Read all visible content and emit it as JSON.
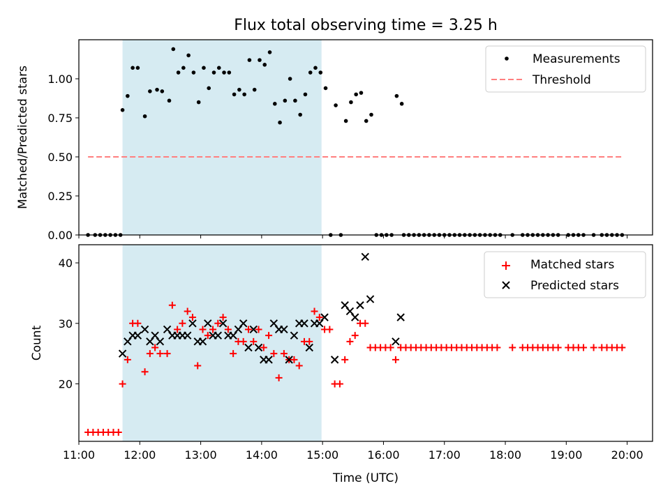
{
  "chart_data": [
    {
      "type": "scatter",
      "title": "Flux total observing time = 3.25 h",
      "ylabel": "Matched/Predicted stars",
      "xlim": [
        "11:00",
        "20:25"
      ],
      "ylim": [
        0,
        1.25
      ],
      "x_ticks": [
        "11:00",
        "12:00",
        "13:00",
        "14:00",
        "15:00",
        "16:00",
        "17:00",
        "18:00",
        "19:00",
        "20:00"
      ],
      "y_ticks": [
        "0.00",
        "0.25",
        "0.50",
        "0.75",
        "1.00"
      ],
      "highlight_span": [
        "11:43",
        "14:59"
      ],
      "highlight_color": "#add8e6",
      "legend_position": "top-right",
      "series": [
        {
          "name": "Measurements",
          "marker": "dot",
          "color": "#000000",
          "points": [
            [
              "11:09",
              0
            ],
            [
              "11:16",
              0
            ],
            [
              "11:21",
              0
            ],
            [
              "11:26",
              0
            ],
            [
              "11:31",
              0
            ],
            [
              "11:36",
              0
            ],
            [
              "11:41",
              0
            ],
            [
              "11:43",
              0.8
            ],
            [
              "11:48",
              0.89
            ],
            [
              "11:53",
              1.07
            ],
            [
              "11:58",
              1.07
            ],
            [
              "12:05",
              0.76
            ],
            [
              "12:10",
              0.92
            ],
            [
              "12:17",
              0.93
            ],
            [
              "12:22",
              0.92
            ],
            [
              "12:29",
              0.86
            ],
            [
              "12:33",
              1.19
            ],
            [
              "12:38",
              1.04
            ],
            [
              "12:43",
              1.07
            ],
            [
              "12:48",
              1.15
            ],
            [
              "12:53",
              1.04
            ],
            [
              "12:58",
              0.85
            ],
            [
              "13:03",
              1.07
            ],
            [
              "13:08",
              0.94
            ],
            [
              "13:13",
              1.04
            ],
            [
              "13:18",
              1.07
            ],
            [
              "13:23",
              1.04
            ],
            [
              "13:28",
              1.04
            ],
            [
              "13:33",
              0.9
            ],
            [
              "13:38",
              0.93
            ],
            [
              "13:43",
              0.9
            ],
            [
              "13:48",
              1.12
            ],
            [
              "13:53",
              0.93
            ],
            [
              "13:58",
              1.12
            ],
            [
              "14:03",
              1.09
            ],
            [
              "14:08",
              1.17
            ],
            [
              "14:13",
              0.84
            ],
            [
              "14:18",
              0.72
            ],
            [
              "14:23",
              0.86
            ],
            [
              "14:28",
              1.0
            ],
            [
              "14:33",
              0.86
            ],
            [
              "14:38",
              0.77
            ],
            [
              "14:43",
              0.9
            ],
            [
              "14:48",
              1.04
            ],
            [
              "14:53",
              1.07
            ],
            [
              "14:58",
              1.04
            ],
            [
              "15:03",
              0.94
            ],
            [
              "15:08",
              0
            ],
            [
              "15:13",
              0.83
            ],
            [
              "15:18",
              0
            ],
            [
              "15:23",
              0.73
            ],
            [
              "15:28",
              0.85
            ],
            [
              "15:33",
              0.9
            ],
            [
              "15:38",
              0.91
            ],
            [
              "15:43",
              0.73
            ],
            [
              "15:48",
              0.77
            ],
            [
              "15:53",
              0
            ],
            [
              "15:58",
              0
            ],
            [
              "16:03",
              0
            ],
            [
              "16:08",
              0
            ],
            [
              "16:13",
              0.89
            ],
            [
              "16:18",
              0.84
            ],
            [
              "16:20",
              0
            ],
            [
              "16:25",
              0
            ],
            [
              "16:30",
              0
            ],
            [
              "16:35",
              0
            ],
            [
              "16:40",
              0
            ],
            [
              "16:45",
              0
            ],
            [
              "16:50",
              0
            ],
            [
              "16:55",
              0
            ],
            [
              "17:00",
              0
            ],
            [
              "17:05",
              0
            ],
            [
              "17:10",
              0
            ],
            [
              "17:15",
              0
            ],
            [
              "17:20",
              0
            ],
            [
              "17:25",
              0
            ],
            [
              "17:30",
              0
            ],
            [
              "17:35",
              0
            ],
            [
              "17:40",
              0
            ],
            [
              "17:45",
              0
            ],
            [
              "17:50",
              0
            ],
            [
              "17:55",
              0
            ],
            [
              "18:07",
              0
            ],
            [
              "18:17",
              0
            ],
            [
              "18:22",
              0
            ],
            [
              "18:27",
              0
            ],
            [
              "18:32",
              0
            ],
            [
              "18:37",
              0
            ],
            [
              "18:42",
              0
            ],
            [
              "18:47",
              0
            ],
            [
              "18:52",
              0
            ],
            [
              "19:02",
              0
            ],
            [
              "19:07",
              0
            ],
            [
              "19:12",
              0
            ],
            [
              "19:17",
              0
            ],
            [
              "19:27",
              0
            ],
            [
              "19:35",
              0
            ],
            [
              "19:40",
              0
            ],
            [
              "19:45",
              0
            ],
            [
              "19:50",
              0
            ],
            [
              "19:55",
              0
            ]
          ]
        },
        {
          "name": "Threshold",
          "marker": "dashed-line",
          "color": "#ff7f7f",
          "points": [
            [
              "11:09",
              0.5
            ],
            [
              "19:55",
              0.5
            ]
          ]
        }
      ]
    },
    {
      "type": "scatter",
      "xlabel": "Time (UTC)",
      "ylabel": "Count",
      "xlim": [
        "11:00",
        "20:25"
      ],
      "ylim": [
        10.5,
        43
      ],
      "x_ticks": [
        "11:00",
        "12:00",
        "13:00",
        "14:00",
        "15:00",
        "16:00",
        "17:00",
        "18:00",
        "19:00",
        "20:00"
      ],
      "y_ticks": [
        "20",
        "30",
        "40"
      ],
      "highlight_span": [
        "11:43",
        "14:59"
      ],
      "highlight_color": "#add8e6",
      "legend_position": "top-right",
      "series": [
        {
          "name": "Matched stars",
          "marker": "plus",
          "color": "#ff0000",
          "points": [
            [
              "11:09",
              12
            ],
            [
              "11:14",
              12
            ],
            [
              "11:19",
              12
            ],
            [
              "11:24",
              12
            ],
            [
              "11:29",
              12
            ],
            [
              "11:34",
              12
            ],
            [
              "11:39",
              12
            ],
            [
              "11:43",
              20
            ],
            [
              "11:48",
              24
            ],
            [
              "11:53",
              30
            ],
            [
              "11:58",
              30
            ],
            [
              "12:05",
              22
            ],
            [
              "12:10",
              25
            ],
            [
              "12:15",
              26
            ],
            [
              "12:20",
              25
            ],
            [
              "12:27",
              25
            ],
            [
              "12:32",
              33
            ],
            [
              "12:37",
              29
            ],
            [
              "12:42",
              30
            ],
            [
              "12:47",
              32
            ],
            [
              "12:52",
              31
            ],
            [
              "12:57",
              23
            ],
            [
              "13:02",
              29
            ],
            [
              "13:07",
              28
            ],
            [
              "13:12",
              29
            ],
            [
              "13:17",
              30
            ],
            [
              "13:22",
              31
            ],
            [
              "13:27",
              29
            ],
            [
              "13:32",
              25
            ],
            [
              "13:37",
              27
            ],
            [
              "13:42",
              27
            ],
            [
              "13:47",
              29
            ],
            [
              "13:52",
              27
            ],
            [
              "13:57",
              29
            ],
            [
              "14:02",
              26
            ],
            [
              "14:07",
              28
            ],
            [
              "14:12",
              25
            ],
            [
              "14:17",
              21
            ],
            [
              "14:22",
              25
            ],
            [
              "14:27",
              24
            ],
            [
              "14:32",
              24
            ],
            [
              "14:37",
              23
            ],
            [
              "14:42",
              27
            ],
            [
              "14:47",
              27
            ],
            [
              "14:52",
              32
            ],
            [
              "14:57",
              31
            ],
            [
              "15:02",
              29
            ],
            [
              "15:07",
              29
            ],
            [
              "15:12",
              20
            ],
            [
              "15:17",
              20
            ],
            [
              "15:22",
              24
            ],
            [
              "15:27",
              27
            ],
            [
              "15:32",
              28
            ],
            [
              "15:37",
              30
            ],
            [
              "15:42",
              30
            ],
            [
              "15:47",
              26
            ],
            [
              "15:52",
              26
            ],
            [
              "15:57",
              26
            ],
            [
              "16:02",
              26
            ],
            [
              "16:07",
              26
            ],
            [
              "16:12",
              24
            ],
            [
              "16:17",
              26
            ],
            [
              "16:22",
              26
            ],
            [
              "16:27",
              26
            ],
            [
              "16:32",
              26
            ],
            [
              "16:37",
              26
            ],
            [
              "16:42",
              26
            ],
            [
              "16:47",
              26
            ],
            [
              "16:52",
              26
            ],
            [
              "16:57",
              26
            ],
            [
              "17:02",
              26
            ],
            [
              "17:07",
              26
            ],
            [
              "17:12",
              26
            ],
            [
              "17:17",
              26
            ],
            [
              "17:22",
              26
            ],
            [
              "17:27",
              26
            ],
            [
              "17:32",
              26
            ],
            [
              "17:37",
              26
            ],
            [
              "17:42",
              26
            ],
            [
              "17:47",
              26
            ],
            [
              "17:52",
              26
            ],
            [
              "18:07",
              26
            ],
            [
              "18:17",
              26
            ],
            [
              "18:22",
              26
            ],
            [
              "18:27",
              26
            ],
            [
              "18:32",
              26
            ],
            [
              "18:37",
              26
            ],
            [
              "18:42",
              26
            ],
            [
              "18:47",
              26
            ],
            [
              "18:52",
              26
            ],
            [
              "19:02",
              26
            ],
            [
              "19:07",
              26
            ],
            [
              "19:12",
              26
            ],
            [
              "19:17",
              26
            ],
            [
              "19:27",
              26
            ],
            [
              "19:35",
              26
            ],
            [
              "19:40",
              26
            ],
            [
              "19:45",
              26
            ],
            [
              "19:50",
              26
            ],
            [
              "19:55",
              26
            ]
          ]
        },
        {
          "name": "Predicted stars",
          "marker": "x",
          "color": "#000000",
          "points": [
            [
              "11:43",
              25
            ],
            [
              "11:48",
              27
            ],
            [
              "11:53",
              28
            ],
            [
              "11:58",
              28
            ],
            [
              "12:05",
              29
            ],
            [
              "12:10",
              27
            ],
            [
              "12:15",
              28
            ],
            [
              "12:20",
              27
            ],
            [
              "12:27",
              29
            ],
            [
              "12:32",
              28
            ],
            [
              "12:37",
              28
            ],
            [
              "12:42",
              28
            ],
            [
              "12:47",
              28
            ],
            [
              "12:52",
              30
            ],
            [
              "12:57",
              27
            ],
            [
              "13:02",
              27
            ],
            [
              "13:07",
              30
            ],
            [
              "13:12",
              28
            ],
            [
              "13:17",
              28
            ],
            [
              "13:22",
              30
            ],
            [
              "13:27",
              28
            ],
            [
              "13:32",
              28
            ],
            [
              "13:37",
              29
            ],
            [
              "13:42",
              30
            ],
            [
              "13:47",
              26
            ],
            [
              "13:52",
              29
            ],
            [
              "13:57",
              26
            ],
            [
              "14:02",
              24
            ],
            [
              "14:07",
              24
            ],
            [
              "14:12",
              30
            ],
            [
              "14:17",
              29
            ],
            [
              "14:22",
              29
            ],
            [
              "14:27",
              24
            ],
            [
              "14:32",
              28
            ],
            [
              "14:37",
              30
            ],
            [
              "14:42",
              30
            ],
            [
              "14:47",
              26
            ],
            [
              "14:52",
              30
            ],
            [
              "14:57",
              30
            ],
            [
              "15:02",
              31
            ],
            [
              "15:12",
              24
            ],
            [
              "15:22",
              33
            ],
            [
              "15:27",
              32
            ],
            [
              "15:32",
              31
            ],
            [
              "15:37",
              33
            ],
            [
              "15:42",
              41
            ],
            [
              "15:47",
              34
            ],
            [
              "16:12",
              27
            ],
            [
              "16:17",
              31
            ]
          ]
        }
      ]
    }
  ]
}
